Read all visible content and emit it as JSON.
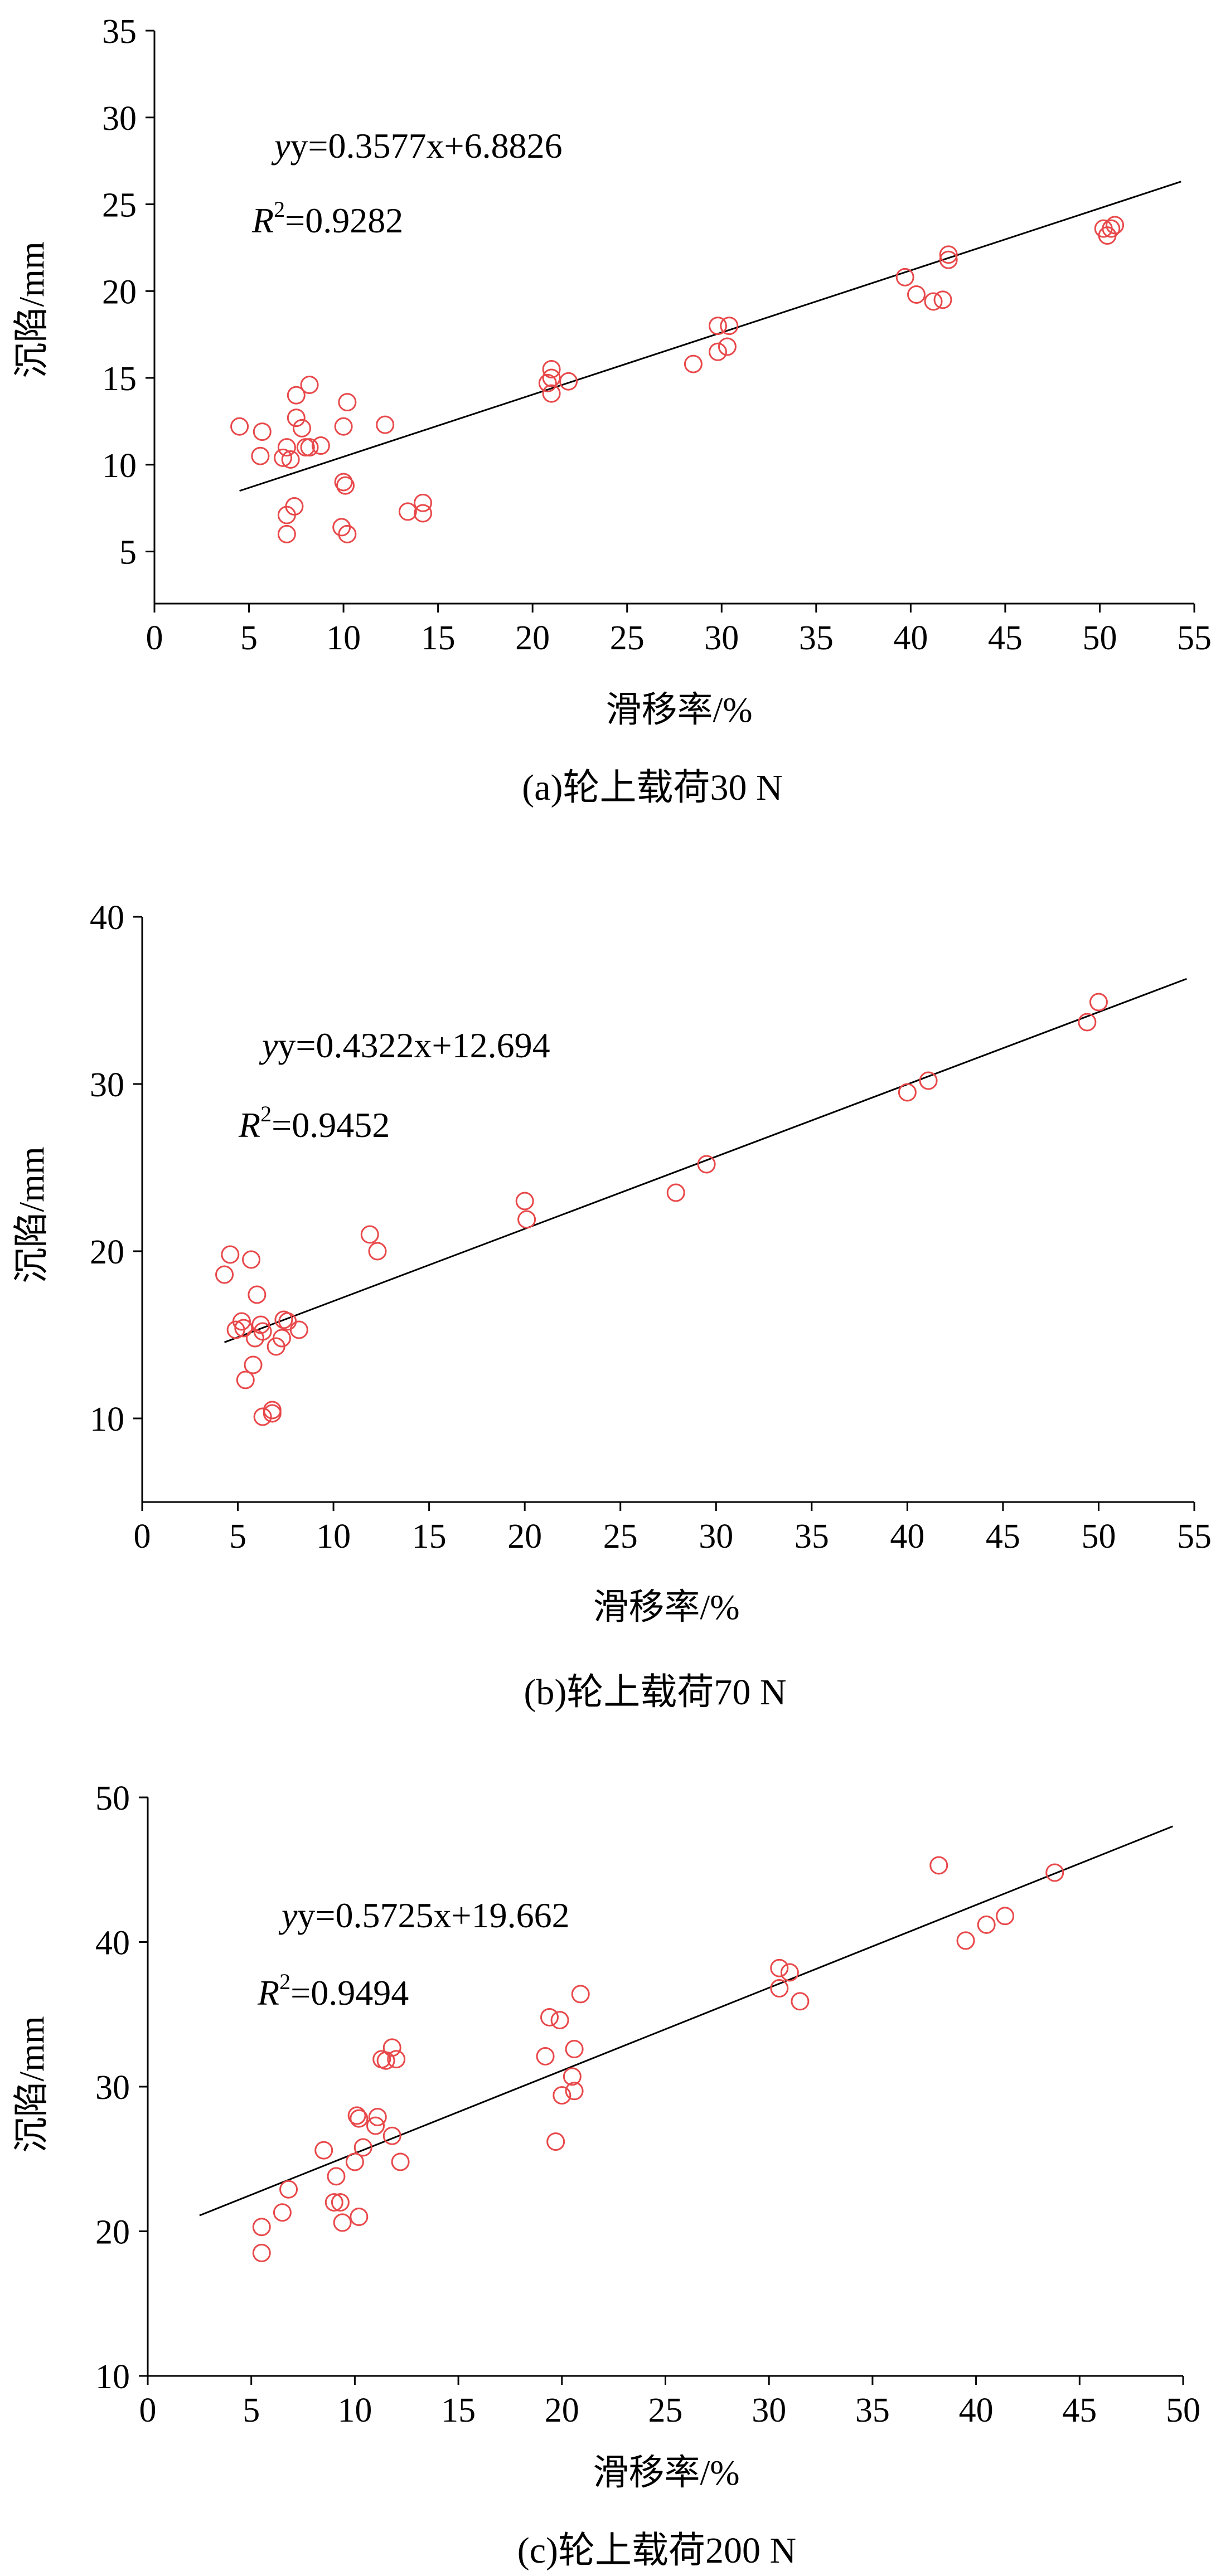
{
  "chart_data": [
    {
      "type": "scatter",
      "caption": "(a)轮上载荷30 N",
      "xlabel": "滑移率/%",
      "ylabel": "沉陷/mm",
      "xlim": [
        0,
        55
      ],
      "ylim": [
        2,
        35
      ],
      "xticks": [
        0,
        5,
        10,
        15,
        20,
        25,
        30,
        35,
        40,
        45,
        50,
        55
      ],
      "yticks": [
        5,
        10,
        15,
        20,
        25,
        30,
        35
      ],
      "equation": "y=0.3577x+6.8826",
      "r2_label": "R",
      "r2_sup": "2",
      "r2_value": "=0.9282",
      "fit": {
        "slope": 0.3577,
        "intercept": 6.8826,
        "x_range": [
          4.5,
          54.3
        ]
      },
      "colors": {
        "points": "#e8484a",
        "line": "#000000"
      },
      "points": [
        [
          4.5,
          12.2
        ],
        [
          5.7,
          11.9
        ],
        [
          5.6,
          10.5
        ],
        [
          6.8,
          10.4
        ],
        [
          7.0,
          11.0
        ],
        [
          7.2,
          10.3
        ],
        [
          7.0,
          7.1
        ],
        [
          7.0,
          6.0
        ],
        [
          7.4,
          7.6
        ],
        [
          7.5,
          14.0
        ],
        [
          7.5,
          12.7
        ],
        [
          7.8,
          12.1
        ],
        [
          8.0,
          11.0
        ],
        [
          8.2,
          14.6
        ],
        [
          8.2,
          11.0
        ],
        [
          8.8,
          11.1
        ],
        [
          10.0,
          12.2
        ],
        [
          10.2,
          13.6
        ],
        [
          10.0,
          9.0
        ],
        [
          10.1,
          8.8
        ],
        [
          9.9,
          6.4
        ],
        [
          10.2,
          6.0
        ],
        [
          12.2,
          12.3
        ],
        [
          13.4,
          7.3
        ],
        [
          14.2,
          7.8
        ],
        [
          14.2,
          7.2
        ],
        [
          20.8,
          14.7
        ],
        [
          21.0,
          15.5
        ],
        [
          21.0,
          15.0
        ],
        [
          21.0,
          14.1
        ],
        [
          21.9,
          14.8
        ],
        [
          28.5,
          15.8
        ],
        [
          29.8,
          18.0
        ],
        [
          30.4,
          18.0
        ],
        [
          29.8,
          16.5
        ],
        [
          30.3,
          16.8
        ],
        [
          39.7,
          20.8
        ],
        [
          40.3,
          19.8
        ],
        [
          41.2,
          19.4
        ],
        [
          41.7,
          19.5
        ],
        [
          42.0,
          21.8
        ],
        [
          42.0,
          22.1
        ],
        [
          50.2,
          23.6
        ],
        [
          50.4,
          23.2
        ],
        [
          50.6,
          23.6
        ],
        [
          50.8,
          23.8
        ]
      ]
    },
    {
      "type": "scatter",
      "caption": "(b)轮上载荷70 N",
      "xlabel": "滑移率/%",
      "ylabel": "沉陷/mm",
      "xlim": [
        0,
        55
      ],
      "ylim": [
        5,
        40
      ],
      "xticks": [
        0,
        5,
        10,
        15,
        20,
        25,
        30,
        35,
        40,
        45,
        50,
        55
      ],
      "yticks": [
        10,
        20,
        30,
        40
      ],
      "equation": "y=0.4322x+12.694",
      "r2_label": "R",
      "r2_sup": "2",
      "r2_value": "=0.9452",
      "fit": {
        "slope": 0.4322,
        "intercept": 12.694,
        "x_range": [
          4.3,
          54.6
        ]
      },
      "colors": {
        "points": "#e8484a",
        "line": "#000000"
      },
      "points": [
        [
          4.3,
          18.6
        ],
        [
          4.6,
          19.8
        ],
        [
          4.9,
          15.3
        ],
        [
          5.2,
          15.8
        ],
        [
          5.3,
          15.4
        ],
        [
          5.4,
          12.3
        ],
        [
          5.7,
          19.5
        ],
        [
          5.8,
          13.2
        ],
        [
          5.9,
          14.8
        ],
        [
          6.0,
          17.4
        ],
        [
          6.2,
          15.6
        ],
        [
          6.3,
          15.2
        ],
        [
          6.3,
          10.1
        ],
        [
          6.8,
          10.3
        ],
        [
          6.8,
          10.5
        ],
        [
          7.0,
          14.3
        ],
        [
          7.3,
          14.8
        ],
        [
          7.4,
          15.9
        ],
        [
          7.6,
          15.8
        ],
        [
          8.2,
          15.3
        ],
        [
          11.9,
          21.0
        ],
        [
          12.3,
          20.0
        ],
        [
          20.0,
          23.0
        ],
        [
          20.1,
          21.9
        ],
        [
          27.9,
          23.5
        ],
        [
          29.5,
          25.2
        ],
        [
          40.0,
          29.5
        ],
        [
          41.1,
          30.2
        ],
        [
          49.4,
          33.7
        ],
        [
          50.0,
          34.9
        ]
      ]
    },
    {
      "type": "scatter",
      "caption": "(c)轮上载荷200 N",
      "xlabel": "滑移率/%",
      "ylabel": "沉陷/mm",
      "xlim": [
        0,
        50
      ],
      "ylim": [
        10,
        50
      ],
      "xticks": [
        0,
        5,
        10,
        15,
        20,
        25,
        30,
        35,
        40,
        45,
        50
      ],
      "yticks": [
        10,
        20,
        30,
        40,
        50
      ],
      "equation": "y=0.5725x+19.662",
      "r2_label": "R",
      "r2_sup": "2",
      "r2_value": "=0.9494",
      "fit": {
        "slope": 0.5725,
        "intercept": 19.662,
        "x_range": [
          2.5,
          49.5
        ]
      },
      "colors": {
        "points": "#e8484a",
        "line": "#000000"
      },
      "points": [
        [
          5.5,
          20.3
        ],
        [
          5.5,
          18.5
        ],
        [
          6.5,
          21.3
        ],
        [
          6.8,
          22.9
        ],
        [
          8.5,
          25.6
        ],
        [
          9.0,
          22.0
        ],
        [
          9.1,
          23.8
        ],
        [
          9.3,
          22.0
        ],
        [
          9.4,
          20.6
        ],
        [
          10.0,
          24.8
        ],
        [
          10.1,
          28.0
        ],
        [
          10.2,
          27.8
        ],
        [
          10.2,
          21.0
        ],
        [
          10.4,
          25.8
        ],
        [
          11.0,
          27.3
        ],
        [
          11.1,
          27.9
        ],
        [
          11.3,
          31.9
        ],
        [
          11.5,
          31.8
        ],
        [
          11.8,
          32.7
        ],
        [
          11.8,
          26.6
        ],
        [
          12.0,
          31.9
        ],
        [
          12.2,
          24.8
        ],
        [
          19.2,
          32.1
        ],
        [
          19.4,
          34.8
        ],
        [
          19.7,
          26.2
        ],
        [
          19.9,
          34.6
        ],
        [
          20.0,
          29.4
        ],
        [
          20.5,
          30.7
        ],
        [
          20.6,
          29.7
        ],
        [
          20.6,
          32.6
        ],
        [
          20.9,
          36.4
        ],
        [
          30.5,
          38.2
        ],
        [
          30.5,
          36.8
        ],
        [
          31.0,
          37.9
        ],
        [
          31.5,
          35.9
        ],
        [
          38.2,
          45.3
        ],
        [
          39.5,
          40.1
        ],
        [
          40.5,
          41.2
        ],
        [
          41.4,
          41.8
        ],
        [
          43.8,
          44.8
        ]
      ]
    }
  ]
}
